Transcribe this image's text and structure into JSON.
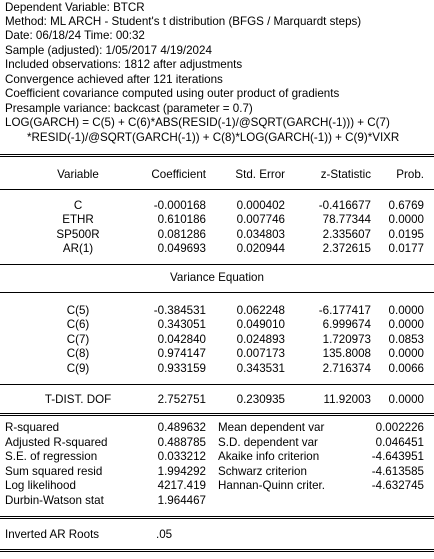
{
  "header": [
    "Dependent Variable: BTCR",
    "Method: ML ARCH - Student's t distribution (BFGS / Marquardt steps)",
    "Date: 06/18/24   Time: 00:32",
    "Sample (adjusted): 1/05/2017 4/19/2024",
    "Included observations: 1812 after adjustments",
    "Convergence achieved after 121 iterations",
    "Coefficient covariance computed using outer product of gradients",
    "Presample variance: backcast (parameter = 0.7)",
    "LOG(GARCH) = C(5) + C(6)*ABS(RESID(-1)/@SQRT(GARCH(-1))) + C(7)",
    "*RESID(-1)/@SQRT(GARCH(-1)) + C(8)*LOG(GARCH(-1)) + C(9)*VIXR"
  ],
  "table": {
    "columns": [
      "Variable",
      "Coefficient",
      "Std. Error",
      "z-Statistic",
      "Prob."
    ],
    "mean_rows": [
      [
        "C",
        "-0.000168",
        "0.000402",
        "-0.416677",
        "0.6769"
      ],
      [
        "ETHR",
        "0.610186",
        "0.007746",
        "78.77344",
        "0.0000"
      ],
      [
        "SP500R",
        "0.081286",
        "0.034803",
        "2.335607",
        "0.0195"
      ],
      [
        "AR(1)",
        "0.049693",
        "0.020944",
        "2.372615",
        "0.0177"
      ]
    ],
    "variance_title": "Variance Equation",
    "variance_rows": [
      [
        "C(5)",
        "-0.384531",
        "0.062248",
        "-6.177417",
        "0.0000"
      ],
      [
        "C(6)",
        "0.343051",
        "0.049010",
        "6.999674",
        "0.0000"
      ],
      [
        "C(7)",
        "0.042840",
        "0.024893",
        "1.720973",
        "0.0853"
      ],
      [
        "C(8)",
        "0.974147",
        "0.007173",
        "135.8008",
        "0.0000"
      ],
      [
        "C(9)",
        "0.933159",
        "0.343531",
        "2.716374",
        "0.0066"
      ]
    ],
    "tdist_row": [
      "T-DIST. DOF",
      "2.752751",
      "0.230935",
      "11.92003",
      "0.0000"
    ]
  },
  "stats": [
    [
      "R-squared",
      "0.489632",
      "Mean dependent var",
      "0.002226"
    ],
    [
      "Adjusted R-squared",
      "0.488785",
      "S.D. dependent var",
      "0.046451"
    ],
    [
      "S.E. of regression",
      "0.033212",
      "Akaike info criterion",
      "-4.643951"
    ],
    [
      "Sum squared resid",
      "1.994292",
      "Schwarz criterion",
      "-4.613585"
    ],
    [
      "Log likelihood",
      "4217.419",
      "Hannan-Quinn criter.",
      "-4.632745"
    ],
    [
      "Durbin-Watson stat",
      "1.964467",
      "",
      ""
    ]
  ],
  "roots": {
    "label": "Inverted AR Roots",
    "value": ".05"
  }
}
